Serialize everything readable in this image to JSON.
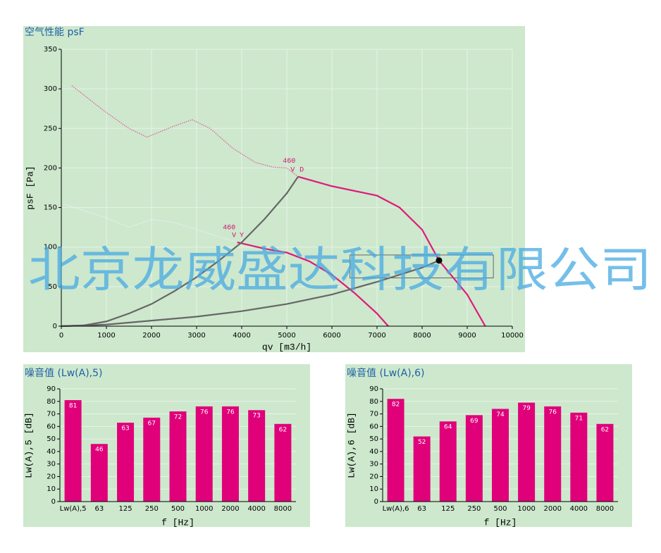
{
  "chart_data": [
    {
      "type": "line",
      "title": "空气性能 psF",
      "x_label": "qv [m3/h]",
      "y_label": "psF [Pa]",
      "xlim": [
        0,
        10000
      ],
      "xticks": [
        0,
        1000,
        2000,
        3000,
        4000,
        5000,
        6000,
        7000,
        8000,
        9000,
        10000
      ],
      "ylim": [
        0,
        350
      ],
      "yticks": [
        0,
        50,
        100,
        150,
        200,
        250,
        300,
        350
      ],
      "grid": true,
      "series": [
        {
          "color": "#e0559a",
          "dash": "dotted",
          "x": [
            234,
            1000,
            1500,
            1900,
            2500,
            2900,
            3300,
            3800,
            4300,
            4700,
            5000,
            5250
          ],
          "values": [
            304,
            270,
            250,
            239,
            253,
            261,
            250,
            225,
            207,
            201,
            200,
            189
          ]
        },
        {
          "color": "#e0197a",
          "dash": "solid",
          "x": [
            5250,
            6000,
            7000,
            7500,
            8000,
            8375,
            9000,
            9400
          ],
          "values": [
            189,
            177,
            165,
            150,
            122,
            83,
            40,
            0
          ]
        },
        {
          "color": "#eef2fa",
          "dash": "dotted",
          "x": [
            80,
            1000,
            1500,
            2000,
            2500,
            3000,
            3500,
            3900
          ],
          "values": [
            154,
            137,
            125,
            135,
            131,
            122,
            113,
            106
          ]
        },
        {
          "color": "#e0197a",
          "dash": "solid",
          "x": [
            3900,
            4500,
            5000,
            5500,
            6000,
            6500,
            7000,
            7250
          ],
          "values": [
            106,
            98,
            93,
            82,
            65,
            42,
            16,
            0
          ]
        },
        {
          "color": "#666666",
          "dash": "solid",
          "x": [
            0,
            500,
            1000,
            1500,
            2000,
            2500,
            3000,
            3500,
            4000,
            4500,
            5000,
            5250
          ],
          "values": [
            0,
            1,
            6,
            16,
            28,
            44,
            62,
            83,
            106,
            135,
            168,
            189
          ]
        },
        {
          "color": "#666666",
          "dash": "solid",
          "x": [
            0,
            1000,
            2000,
            3000,
            4000,
            5000,
            6000,
            7000,
            8000,
            8375
          ],
          "values": [
            0,
            2,
            7,
            12,
            19,
            28,
            40,
            56,
            74,
            83
          ]
        }
      ],
      "point": {
        "x": 8375,
        "y": 83
      },
      "tolerance_box": {
        "x": [
          6400,
          9580
        ],
        "y": [
          61,
          90
        ]
      },
      "annotations": [
        {
          "text": "460",
          "x": 5050,
          "y": 209
        },
        {
          "text": "V",
          "x": 5130,
          "y": 198
        },
        {
          "text": "D",
          "x": 5330,
          "y": 198
        },
        {
          "text": "460",
          "x": 3720,
          "y": 125
        },
        {
          "text": "V",
          "x": 3830,
          "y": 115
        },
        {
          "text": "Y",
          "x": 4000,
          "y": 115
        }
      ]
    },
    {
      "type": "bar",
      "title": "噪音值 (Lw(A),5)",
      "x_label": "f [Hz]",
      "y_label": "Lw(A),5 [dB]",
      "color": "#e0007a",
      "categories": [
        "Lw(A),5",
        "63",
        "125",
        "250",
        "500",
        "1000",
        "2000",
        "4000",
        "8000"
      ],
      "values": [
        81,
        46,
        63,
        67,
        72,
        76,
        76,
        73,
        62
      ],
      "ylim": [
        0,
        90
      ],
      "yticks": [
        0,
        10,
        20,
        30,
        40,
        50,
        60,
        70,
        80,
        90
      ],
      "grid": true
    },
    {
      "type": "bar",
      "title": "噪音值 (Lw(A),6)",
      "x_label": "f [Hz]",
      "y_label": "Lw(A),6 [dB]",
      "color": "#e0007a",
      "categories": [
        "Lw(A),6",
        "63",
        "125",
        "250",
        "500",
        "1000",
        "2000",
        "4000",
        "8000"
      ],
      "values": [
        82,
        52,
        64,
        69,
        74,
        79,
        76,
        71,
        62
      ],
      "ylim": [
        0,
        90
      ],
      "yticks": [
        0,
        10,
        20,
        30,
        40,
        50,
        60,
        70,
        80,
        90
      ],
      "grid": true
    }
  ],
  "watermark": "北京龙威盛达科技有限公司"
}
